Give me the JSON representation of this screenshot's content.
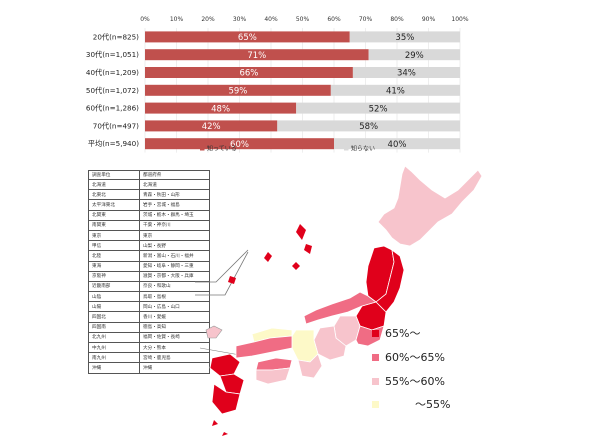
{
  "chart_data": {
    "type": "bar",
    "orientation": "horizontal",
    "stacked": true,
    "percent_axis": true,
    "xlim": [
      0,
      100
    ],
    "xticks": [
      "0%",
      "10%",
      "20%",
      "30%",
      "40%",
      "50%",
      "60%",
      "70%",
      "80%",
      "90%",
      "100%"
    ],
    "categories": [
      "20代(n=825)",
      "30代(n=1,051)",
      "40代(n=1,209)",
      "50代(n=1,072)",
      "60代(n=1,286)",
      "70代(n=497)",
      "平均(n=5,940)"
    ],
    "series": [
      {
        "name": "知っている",
        "color": "#c0504d",
        "values": [
          65,
          71,
          66,
          59,
          48,
          42,
          60
        ],
        "labels": [
          "65%",
          "71%",
          "66%",
          "59%",
          "48%",
          "42%",
          "60%"
        ]
      },
      {
        "name": "知らない",
        "color": "#d9d9d9",
        "values": [
          35,
          29,
          34,
          41,
          52,
          58,
          40
        ],
        "labels": [
          "35%",
          "29%",
          "34%",
          "41%",
          "52%",
          "58%",
          "40%"
        ]
      }
    ],
    "legend_position": "bottom"
  },
  "region_table": {
    "headers": [
      "調査単位",
      "都道府県"
    ],
    "rows": [
      [
        "北海道",
        "北海道"
      ],
      [
        "北東北",
        "青森・秋田・山形"
      ],
      [
        "太平洋東北",
        "岩手・宮城・福島"
      ],
      [
        "北関東",
        "茨城・栃木・群馬・埼玉"
      ],
      [
        "南関東",
        "千葉・神奈川"
      ],
      [
        "東京",
        "東京"
      ],
      [
        "甲信",
        "山梨・長野"
      ],
      [
        "北陸",
        "新潟・富山・石川・福井"
      ],
      [
        "東海",
        "愛知・岐阜・静岡・三重"
      ],
      [
        "京阪神",
        "滋賀・京都・大阪・兵庫"
      ],
      [
        "近畿南部",
        "奈良・和歌山"
      ],
      [
        "山陰",
        "鳥取・島根"
      ],
      [
        "山陽",
        "岡山・広島・山口"
      ],
      [
        "四国北",
        "香川・愛媛"
      ],
      [
        "四国南",
        "徳島・高知"
      ],
      [
        "北九州",
        "福岡・佐賀・長崎"
      ],
      [
        "中九州",
        "大分・熊本"
      ],
      [
        "南九州",
        "宮崎・鹿児島"
      ],
      [
        "沖縄",
        "沖縄"
      ]
    ]
  },
  "map_legend": [
    {
      "label": "65%～",
      "color": "#e0001b"
    },
    {
      "label": "60%～65%",
      "color": "#f06c84"
    },
    {
      "label": "55%～60%",
      "color": "#f7c4cc"
    },
    {
      "label": "～55%",
      "color": "#fdf9c8"
    }
  ]
}
